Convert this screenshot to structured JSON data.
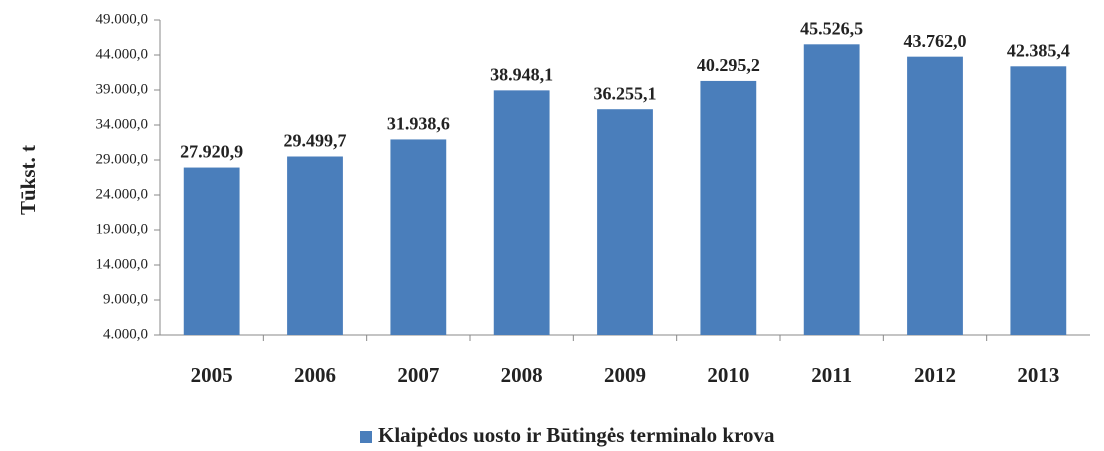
{
  "chart_data": {
    "type": "bar",
    "y_label": "Tūkst. t",
    "categories": [
      "2005",
      "2006",
      "2007",
      "2008",
      "2009",
      "2010",
      "2011",
      "2012",
      "2013"
    ],
    "series": [
      {
        "name": "Klaipėdos uosto ir Būtingės terminalo krova",
        "color": "#4a7ebb",
        "values": [
          27920.9,
          29499.7,
          31938.6,
          38948.1,
          36255.1,
          40295.2,
          45526.5,
          43762.0,
          42385.4
        ],
        "value_labels": [
          "27.920,9",
          "29.499,7",
          "31.938,6",
          "38.948,1",
          "36.255,1",
          "40.295,2",
          "45.526,5",
          "43.762,0",
          "42.385,4"
        ]
      }
    ],
    "ylim": [
      4000,
      49000
    ],
    "yticks": [
      {
        "value": 4000,
        "label": "4.000,0"
      },
      {
        "value": 9000,
        "label": "9.000,0"
      },
      {
        "value": 14000,
        "label": "14.000,0"
      },
      {
        "value": 19000,
        "label": "19.000,0"
      },
      {
        "value": 24000,
        "label": "24.000,0"
      },
      {
        "value": 29000,
        "label": "29.000,0"
      },
      {
        "value": 34000,
        "label": "34.000,0"
      },
      {
        "value": 39000,
        "label": "39.000,0"
      },
      {
        "value": 44000,
        "label": "44.000,0"
      },
      {
        "value": 49000,
        "label": "49.000,0"
      }
    ],
    "grid": false,
    "legend": "bottom"
  }
}
